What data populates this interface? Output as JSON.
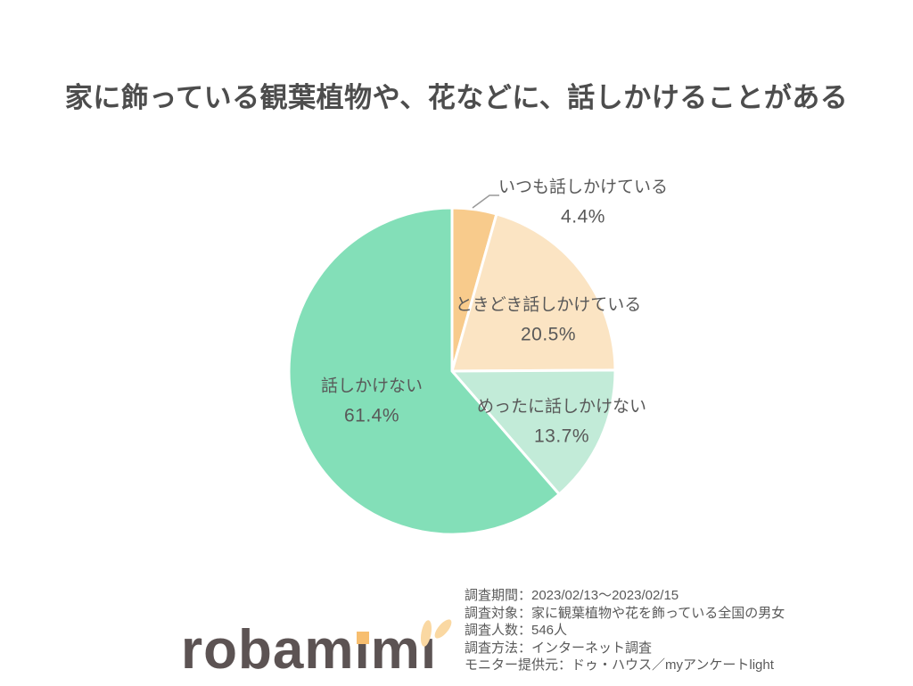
{
  "title": "家に飾っている観葉植物や、花などに、話しかけることがある",
  "chart_data": {
    "type": "pie",
    "title": "家に飾っている観葉植物や、花などに、話しかけることがある",
    "start_angle_deg": 0,
    "direction": "clockwise",
    "stroke_color": "#FFFFFF",
    "stroke_width": 3,
    "legend_position": "labels-on-chart",
    "slices": [
      {
        "label": "いつも話しかけている",
        "value": 4.4,
        "pct_label": "4.4%",
        "color": "#F8CB8C"
      },
      {
        "label": "ときどき話しかけている",
        "value": 20.5,
        "pct_label": "20.5%",
        "color": "#FBE4C3"
      },
      {
        "label": "めったに話しかけない",
        "value": 13.7,
        "pct_label": "13.7%",
        "color": "#C2EBD8"
      },
      {
        "label": "話しかけない",
        "value": 61.4,
        "pct_label": "61.4%",
        "color": "#83DFB8"
      }
    ]
  },
  "survey_info": {
    "lines": [
      "調査期間：2023/02/13～2023/02/15",
      "調査対象：家に観葉植物や花を飾っている全国の男女",
      "調査人数：546人",
      "調査方法：インターネット調査",
      "モニター提供元：ドゥ・ハウス／myアンケートlight"
    ]
  },
  "logo": {
    "brand": "robamimi",
    "display": {
      "prefix": "robam",
      "i_dot": "ı",
      "mid": "m",
      "i_ears": "ı"
    },
    "text_color": "#5C5353",
    "accent_dot_color": "#F7BE6F",
    "ear_color": "#FAD8A2"
  }
}
